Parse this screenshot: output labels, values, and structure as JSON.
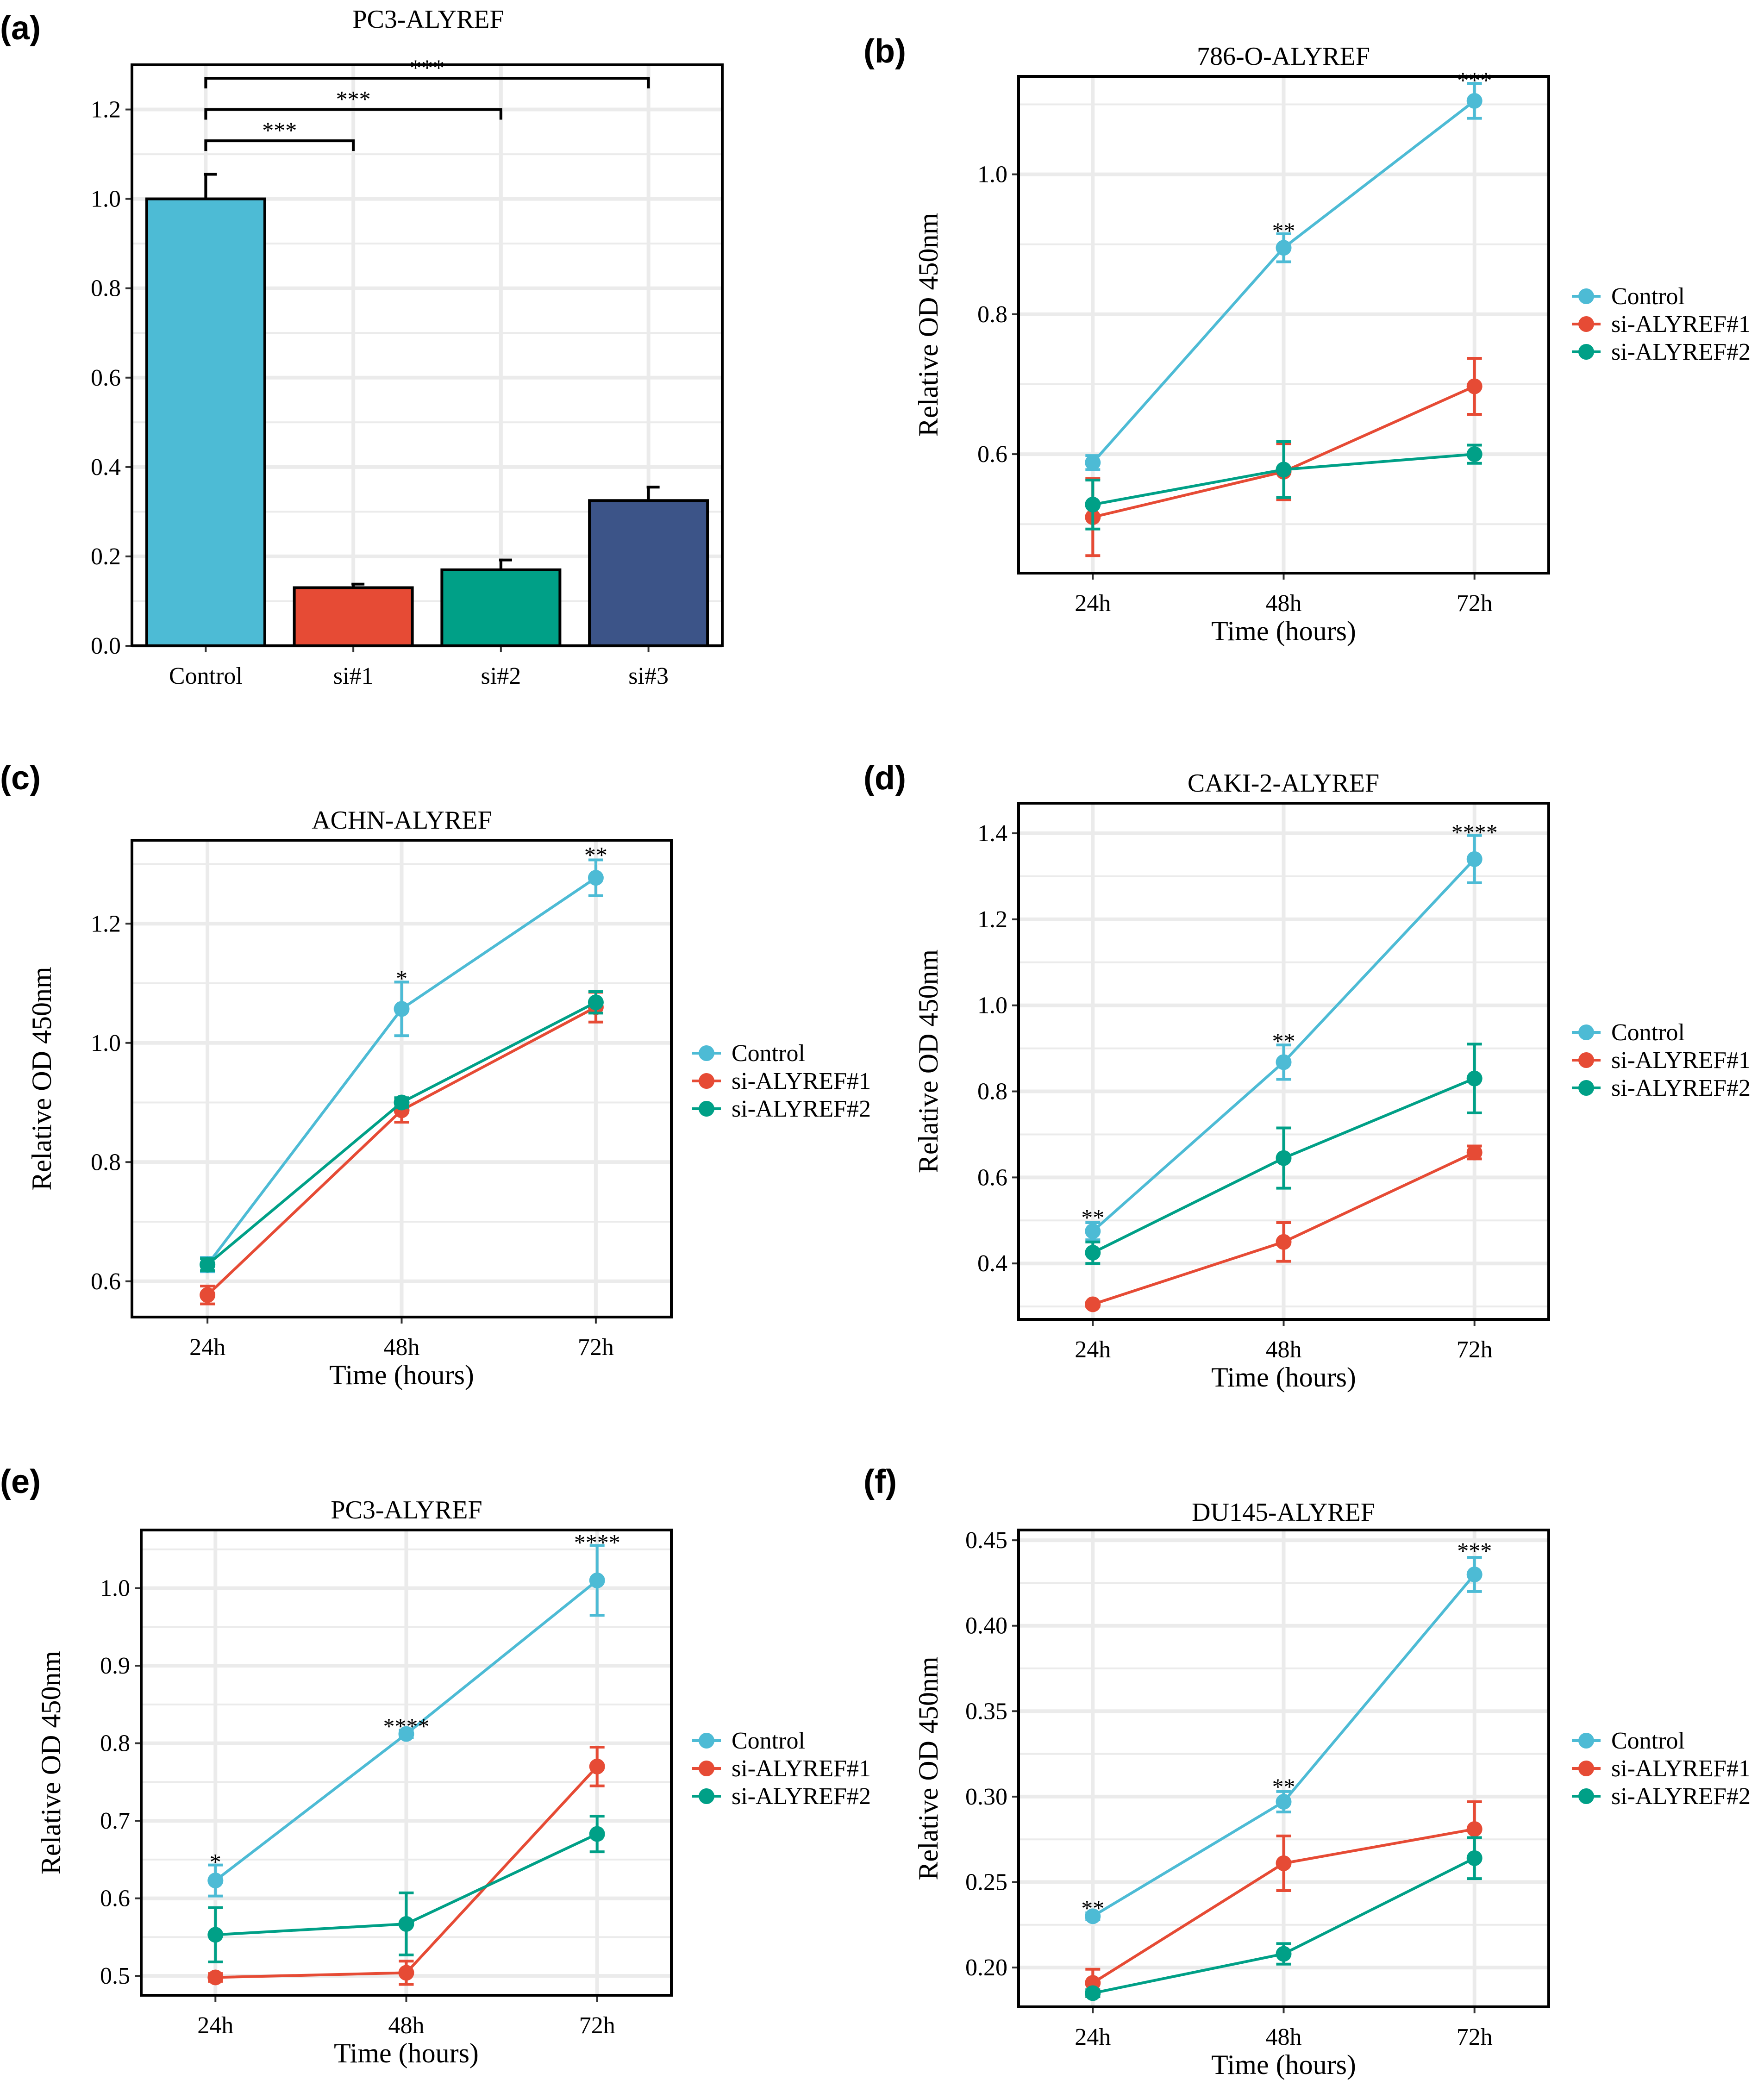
{
  "figure": {
    "name": "ALYREF knockdown figure"
  },
  "colors": {
    "control": "#4DBBD5",
    "si1": "#E64B35",
    "si2": "#00A087",
    "si3": "#3C5488",
    "grid": "#ebebeb"
  },
  "chart_data": [
    {
      "panel": "(a)",
      "type": "bar",
      "title": "PC3-ALYREF",
      "xlabel": "",
      "ylabel": "",
      "categories": [
        "Control",
        "si#1",
        "si#2",
        "si#3"
      ],
      "values": [
        1.0,
        0.13,
        0.17,
        0.325
      ],
      "errors": [
        0.055,
        0.008,
        0.022,
        0.03
      ],
      "colors": [
        "#4DBBD5",
        "#E64B35",
        "#00A087",
        "#3C5488"
      ],
      "ylim": [
        0,
        1.3
      ],
      "yticks": [
        0.0,
        0.2,
        0.4,
        0.6,
        0.8,
        1.0,
        1.2
      ],
      "ytick_labels": [
        "0.0",
        "0.2",
        "0.4",
        "0.6",
        "0.8",
        "1.0",
        "1.2"
      ],
      "brackets": [
        {
          "from": 0,
          "to": 1,
          "y": 1.13,
          "label": "***"
        },
        {
          "from": 0,
          "to": 2,
          "y": 1.2,
          "label": "***"
        },
        {
          "from": 0,
          "to": 3,
          "y": 1.27,
          "label": "***"
        }
      ]
    },
    {
      "panel": "(b)",
      "type": "line",
      "title": "786-O-ALYREF",
      "xlabel": "Time (hours)",
      "ylabel": "Relative OD 450nm",
      "categories": [
        "24h",
        "48h",
        "72h"
      ],
      "ylim": [
        0.43,
        1.14
      ],
      "yticks": [
        0.6,
        0.8,
        1.0
      ],
      "ytick_labels": [
        "0.6",
        "0.8",
        "1.0"
      ],
      "series": [
        {
          "name": "Control",
          "values": [
            0.588,
            0.895,
            1.105
          ],
          "errors": [
            0.01,
            0.02,
            0.025
          ]
        },
        {
          "name": "si-ALYREF#1",
          "values": [
            0.51,
            0.575,
            0.697
          ],
          "errors": [
            0.055,
            0.04,
            0.04
          ]
        },
        {
          "name": "si-ALYREF#2",
          "values": [
            0.528,
            0.578,
            0.6
          ],
          "errors": [
            0.035,
            0.04,
            0.013
          ]
        }
      ],
      "annotations": [
        {
          "x": 1,
          "y": 0.915,
          "label": "**"
        },
        {
          "x": 2,
          "y": 1.13,
          "label": "***"
        }
      ],
      "legend": "right"
    },
    {
      "panel": "(c)",
      "type": "line",
      "title": "ACHN-ALYREF",
      "xlabel": "Time (hours)",
      "ylabel": "Relative OD 450nm",
      "categories": [
        "24h",
        "48h",
        "72h"
      ],
      "ylim": [
        0.54,
        1.34
      ],
      "yticks": [
        0.6,
        0.8,
        1.0,
        1.2
      ],
      "ytick_labels": [
        "0.6",
        "0.8",
        "1.0",
        "1.2"
      ],
      "series": [
        {
          "name": "Control",
          "values": [
            0.628,
            1.057,
            1.277
          ],
          "errors": [
            0.012,
            0.045,
            0.03
          ]
        },
        {
          "name": "si-ALYREF#1",
          "values": [
            0.577,
            0.887,
            1.06
          ],
          "errors": [
            0.015,
            0.02,
            0.025
          ]
        },
        {
          "name": "si-ALYREF#2",
          "values": [
            0.628,
            0.9,
            1.068
          ],
          "errors": [
            0.01,
            0.008,
            0.018
          ]
        }
      ],
      "annotations": [
        {
          "x": 1,
          "y": 1.103,
          "label": "*"
        },
        {
          "x": 2,
          "y": 1.31,
          "label": "**"
        }
      ],
      "legend": "right"
    },
    {
      "panel": "(d)",
      "type": "line",
      "title": "CAKI-2-ALYREF",
      "xlabel": "Time (hours)",
      "ylabel": "Relative OD 450nm",
      "categories": [
        "24h",
        "48h",
        "72h"
      ],
      "ylim": [
        0.27,
        1.47
      ],
      "yticks": [
        0.4,
        0.6,
        0.8,
        1.0,
        1.2,
        1.4
      ],
      "ytick_labels": [
        "0.4",
        "0.6",
        "0.8",
        "1.0",
        "1.2",
        "1.4"
      ],
      "series": [
        {
          "name": "Control",
          "values": [
            0.475,
            0.868,
            1.34
          ],
          "errors": [
            0.02,
            0.04,
            0.055
          ]
        },
        {
          "name": "si-ALYREF#1",
          "values": [
            0.305,
            0.45,
            0.658
          ],
          "errors": [
            0.005,
            0.045,
            0.015
          ]
        },
        {
          "name": "si-ALYREF#2",
          "values": [
            0.425,
            0.645,
            0.83
          ],
          "errors": [
            0.025,
            0.07,
            0.08
          ]
        }
      ],
      "annotations": [
        {
          "x": 0,
          "y": 0.5,
          "label": "**"
        },
        {
          "x": 1,
          "y": 0.91,
          "label": "**"
        },
        {
          "x": 2,
          "y": 1.395,
          "label": "****"
        }
      ],
      "legend": "right"
    },
    {
      "panel": "(e)",
      "type": "line",
      "title": "PC3-ALYREF",
      "xlabel": "Time (hours)",
      "ylabel": "Relative OD 450nm",
      "categories": [
        "24h",
        "48h",
        "72h"
      ],
      "ylim": [
        0.475,
        1.075
      ],
      "yticks": [
        0.5,
        0.6,
        0.7,
        0.8,
        0.9,
        1.0
      ],
      "ytick_labels": [
        "0.5",
        "0.6",
        "0.7",
        "0.8",
        "0.9",
        "1.0"
      ],
      "series": [
        {
          "name": "Control",
          "values": [
            0.623,
            0.812,
            1.01
          ],
          "errors": [
            0.02,
            0.005,
            0.045
          ]
        },
        {
          "name": "si-ALYREF#1",
          "values": [
            0.498,
            0.504,
            0.77
          ],
          "errors": [
            0.005,
            0.015,
            0.025
          ]
        },
        {
          "name": "si-ALYREF#2",
          "values": [
            0.553,
            0.567,
            0.683
          ],
          "errors": [
            0.035,
            0.04,
            0.023
          ]
        }
      ],
      "annotations": [
        {
          "x": 0,
          "y": 0.643,
          "label": "*"
        },
        {
          "x": 1,
          "y": 0.818,
          "label": "****"
        },
        {
          "x": 2,
          "y": 1.055,
          "label": "****"
        }
      ],
      "legend": "right"
    },
    {
      "panel": "(f)",
      "type": "line",
      "title": "DU145-ALYREF",
      "xlabel": "Time (hours)",
      "ylabel": "Relative OD 450nm",
      "categories": [
        "24h",
        "48h",
        "72h"
      ],
      "ylim": [
        0.177,
        0.456
      ],
      "yticks": [
        0.2,
        0.25,
        0.3,
        0.35,
        0.4,
        0.45
      ],
      "ytick_labels": [
        "0.20",
        "0.25",
        "0.30",
        "0.35",
        "0.40",
        "0.45"
      ],
      "series": [
        {
          "name": "Control",
          "values": [
            0.23,
            0.297,
            0.43
          ],
          "errors": [
            0.002,
            0.006,
            0.01
          ]
        },
        {
          "name": "si-ALYREF#1",
          "values": [
            0.191,
            0.261,
            0.281
          ],
          "errors": [
            0.008,
            0.016,
            0.016
          ]
        },
        {
          "name": "si-ALYREF#2",
          "values": [
            0.185,
            0.208,
            0.264
          ],
          "errors": [
            0.002,
            0.006,
            0.012
          ]
        }
      ],
      "annotations": [
        {
          "x": 0,
          "y": 0.233,
          "label": "**"
        },
        {
          "x": 1,
          "y": 0.304,
          "label": "**"
        },
        {
          "x": 2,
          "y": 0.442,
          "label": "***"
        }
      ],
      "legend": "right"
    }
  ]
}
